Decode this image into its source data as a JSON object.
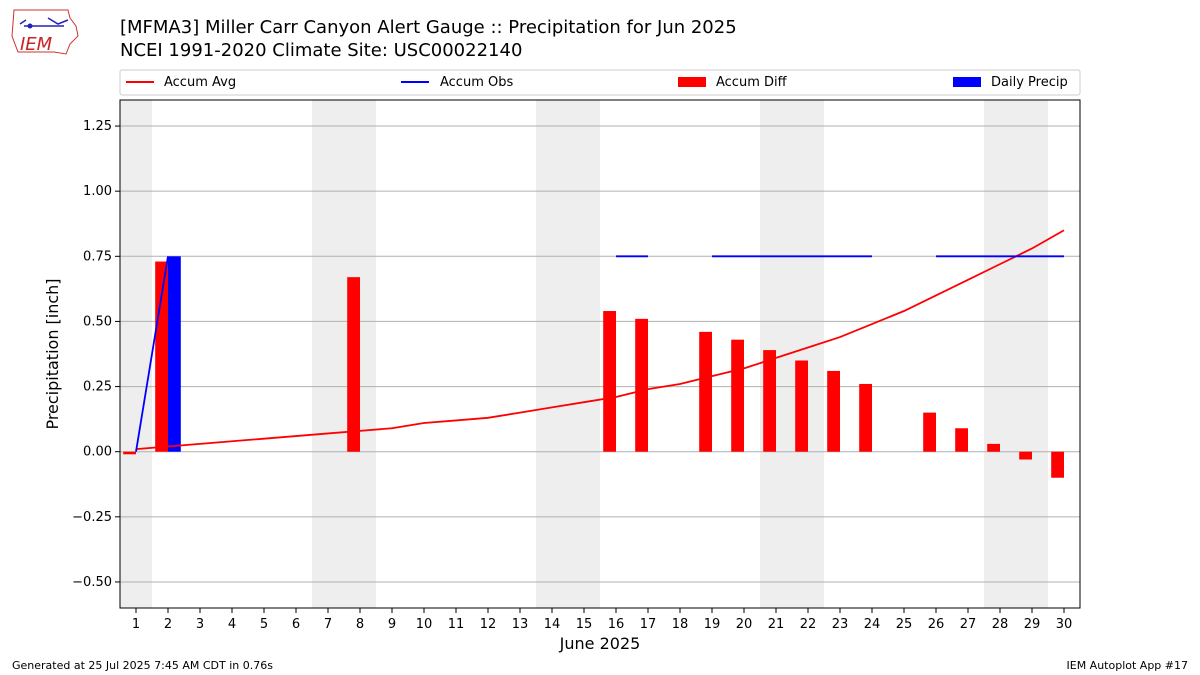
{
  "header": {
    "title_line1": "[MFMA3] Miller Carr Canyon Alert Gauge :: Precipitation for Jun 2025",
    "title_line2": "NCEI 1991-2020 Climate Site: USC00022140"
  },
  "logo": {
    "text": "IEM"
  },
  "footer": {
    "left": "Generated at 25 Jul 2025 7:45 AM CDT in 0.76s",
    "right": "IEM Autoplot App #17"
  },
  "colors": {
    "accum_avg": "#ff0000",
    "accum_obs": "#0000ff",
    "accum_diff": "#ff0000",
    "daily_precip": "#0000ff",
    "weekend_shade": "#eeeeee",
    "grid": "#b0b0b0"
  },
  "chart_data": {
    "type": "bar",
    "title": "",
    "xlabel": "June 2025",
    "ylabel": "Precipitation [inch]",
    "ylim": [
      -0.6,
      1.35
    ],
    "yticks": [
      -0.5,
      -0.25,
      0.0,
      0.25,
      0.5,
      0.75,
      1.0,
      1.25
    ],
    "ytick_labels": [
      "−0.50",
      "−0.25",
      "0.00",
      "0.25",
      "0.50",
      "0.75",
      "1.00",
      "1.25"
    ],
    "x": [
      1,
      2,
      3,
      4,
      5,
      6,
      7,
      8,
      9,
      10,
      11,
      12,
      13,
      14,
      15,
      16,
      17,
      18,
      19,
      20,
      21,
      22,
      23,
      24,
      25,
      26,
      27,
      28,
      29,
      30
    ],
    "grid": "horizontal",
    "legend_placement": "top, above plot",
    "shaded_weekends": [
      1,
      7,
      8,
      14,
      15,
      21,
      22,
      28,
      29
    ],
    "legend": [
      "Accum Avg",
      "Accum Obs",
      "Accum Diff",
      "Daily Precip"
    ],
    "series": [
      {
        "name": "Accum Avg",
        "kind": "line",
        "values": [
          0.01,
          0.02,
          0.03,
          0.04,
          0.05,
          0.06,
          0.07,
          0.08,
          0.09,
          0.11,
          0.12,
          0.13,
          0.15,
          0.17,
          0.19,
          0.21,
          0.24,
          0.26,
          0.29,
          0.32,
          0.36,
          0.4,
          0.44,
          0.49,
          0.54,
          0.6,
          0.66,
          0.72,
          0.78,
          0.85
        ]
      },
      {
        "name": "Accum Obs",
        "kind": "line",
        "values": [
          0.0,
          0.75,
          null,
          null,
          null,
          null,
          null,
          null,
          null,
          null,
          null,
          null,
          null,
          null,
          null,
          0.75,
          0.75,
          null,
          0.75,
          0.75,
          0.75,
          0.75,
          0.75,
          0.75,
          null,
          0.75,
          0.75,
          0.75,
          0.75,
          0.75
        ]
      },
      {
        "name": "Accum Diff",
        "kind": "bar",
        "values": [
          -0.01,
          0.73,
          0,
          0,
          0,
          0,
          0,
          0.67,
          0,
          0,
          0,
          0,
          0,
          0,
          0,
          0.54,
          0.51,
          0,
          0.46,
          0.43,
          0.39,
          0.35,
          0.31,
          0.26,
          0,
          0.15,
          0.09,
          0.03,
          -0.03,
          -0.1
        ]
      },
      {
        "name": "Daily Precip",
        "kind": "bar",
        "values": [
          0,
          0.75,
          0,
          0,
          0,
          0,
          0,
          0,
          0,
          0,
          0,
          0,
          0,
          0,
          0,
          0,
          0,
          0,
          0,
          0,
          0,
          0,
          0,
          0,
          0,
          0,
          0,
          0,
          0,
          0
        ]
      }
    ]
  }
}
